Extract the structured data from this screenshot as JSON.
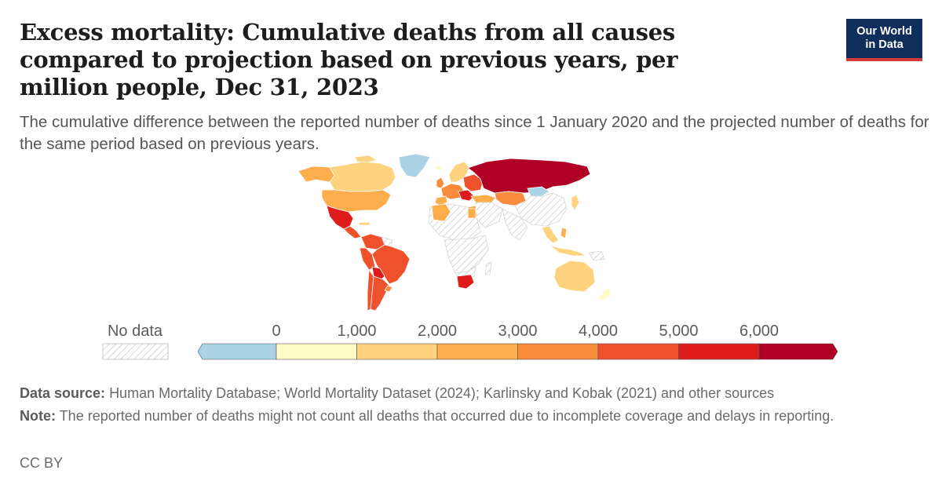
{
  "header": {
    "title": "Excess mortality: Cumulative deaths from all causes compared to projection based on previous years, per million people, Dec 31, 2023",
    "subtitle": "The cumulative difference between the reported number of deaths since 1 January 2020 and the projected number of deaths for the same period based on previous years."
  },
  "logo": {
    "line1": "Our World",
    "line2": "in Data"
  },
  "legend": {
    "no_data_label": "No data",
    "tick_labels": [
      "0",
      "1,000",
      "2,000",
      "3,000",
      "4,000",
      "5,000",
      "6,000"
    ],
    "bins": [
      {
        "from": null,
        "to": 0,
        "color": "#aad3e6"
      },
      {
        "from": 0,
        "to": 1000,
        "color": "#fefcc6"
      },
      {
        "from": 1000,
        "to": 2000,
        "color": "#fed27e"
      },
      {
        "from": 2000,
        "to": 3000,
        "color": "#fdad4c"
      },
      {
        "from": 3000,
        "to": 4000,
        "color": "#f98b3b"
      },
      {
        "from": 4000,
        "to": 5000,
        "color": "#f0512d"
      },
      {
        "from": 5000,
        "to": 6000,
        "color": "#de1c1c"
      },
      {
        "from": 6000,
        "to": null,
        "color": "#b10026"
      }
    ],
    "no_data_color": "#e2e2e2"
  },
  "footer": {
    "source_label": "Data source:",
    "source_text": "Human Mortality Database; World Mortality Dataset (2024); Karlinsky and Kobak (2021) and other sources",
    "note_label": "Note:",
    "note_text": "The reported number of deaths might not count all deaths that occurred due to incomplete coverage and delays in reporting.",
    "license": "CC BY"
  }
}
